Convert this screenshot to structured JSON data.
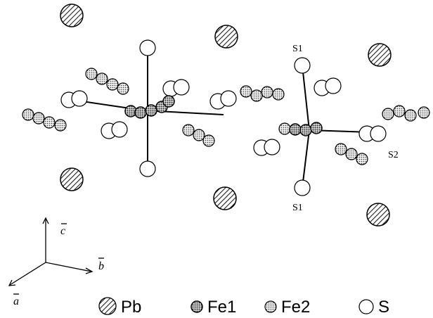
{
  "labels": {
    "s1_top": "S1",
    "s1_bottom": "S1",
    "s2": "S2"
  },
  "axes": {
    "c": "c",
    "b": "b",
    "a": "a"
  },
  "legend": [
    {
      "label": "Pb"
    },
    {
      "label": "Fe1"
    },
    {
      "label": "Fe2"
    },
    {
      "label": "S"
    }
  ]
}
